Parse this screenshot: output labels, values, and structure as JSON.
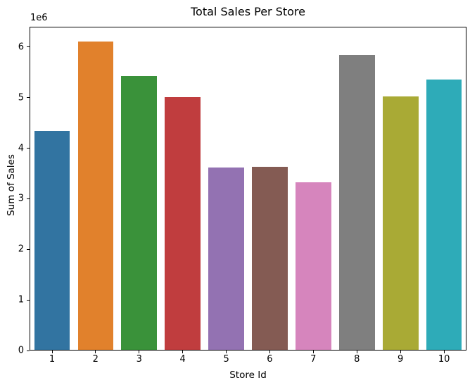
{
  "chart_data": {
    "type": "bar",
    "title": "Total Sales Per Store",
    "xlabel": "Store Id",
    "ylabel": "Sum of Sales",
    "offset_text": "1e6",
    "categories": [
      "1",
      "2",
      "3",
      "4",
      "5",
      "6",
      "7",
      "8",
      "9",
      "10"
    ],
    "values": [
      4340000,
      6115000,
      5435000,
      5015000,
      3625000,
      3635000,
      3330000,
      5855000,
      5035000,
      5365000
    ],
    "bar_colors": [
      "#3274a1",
      "#e1812c",
      "#3a923a",
      "#c03d3e",
      "#9372b2",
      "#845b53",
      "#d685bd",
      "#7f7f7f",
      "#a9aa35",
      "#2eabb8"
    ],
    "ylim": [
      0,
      6400000
    ],
    "yticks": [
      0,
      1,
      2,
      3,
      4,
      5,
      6
    ],
    "ytick_scale": 1000000,
    "grid": false,
    "legend_position": "none",
    "bar_width_fraction": 0.82
  }
}
